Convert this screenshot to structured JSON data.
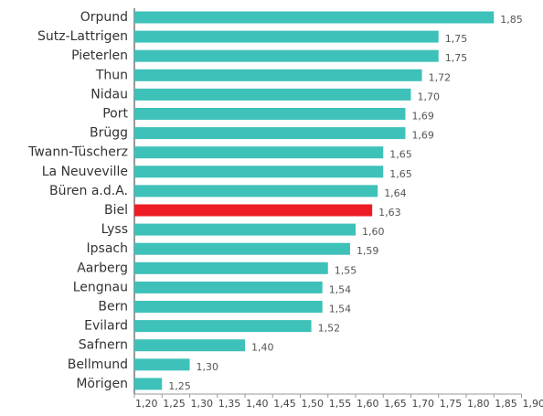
{
  "chart_data": {
    "type": "barh",
    "categories": [
      "Orpund",
      "Sutz-Lattrigen",
      "Pieterlen",
      "Thun",
      "Nidau",
      "Port",
      "Brügg",
      "Twann-Tüscherz",
      "La Neuveville",
      "Büren a.d.A.",
      "Biel",
      "Lyss",
      "Ipsach",
      "Aarberg",
      "Lengnau",
      "Bern",
      "Evilard",
      "Safnern",
      "Bellmund",
      "Mörigen"
    ],
    "values": [
      1.85,
      1.75,
      1.75,
      1.72,
      1.7,
      1.69,
      1.69,
      1.65,
      1.65,
      1.64,
      1.63,
      1.6,
      1.59,
      1.55,
      1.54,
      1.54,
      1.52,
      1.4,
      1.3,
      1.25
    ],
    "value_labels": [
      "1,85",
      "1,75",
      "1,75",
      "1,72",
      "1,70",
      "1,69",
      "1,69",
      "1,65",
      "1,65",
      "1,64",
      "1,63",
      "1,60",
      "1,59",
      "1,55",
      "1,54",
      "1,54",
      "1,52",
      "1,40",
      "1,30",
      "1,25"
    ],
    "colors": [
      "#3ec1b9",
      "#3ec1b9",
      "#3ec1b9",
      "#3ec1b9",
      "#3ec1b9",
      "#3ec1b9",
      "#3ec1b9",
      "#3ec1b9",
      "#3ec1b9",
      "#3ec1b9",
      "#ed1c24",
      "#3ec1b9",
      "#3ec1b9",
      "#3ec1b9",
      "#3ec1b9",
      "#3ec1b9",
      "#3ec1b9",
      "#3ec1b9",
      "#3ec1b9",
      "#3ec1b9"
    ],
    "xlim": [
      1.2,
      1.9
    ],
    "xticks": [
      {
        "value": 1.2,
        "label": "1,20"
      },
      {
        "value": 1.25,
        "label": "1,25"
      },
      {
        "value": 1.3,
        "label": "1,30"
      },
      {
        "value": 1.35,
        "label": "1,35"
      },
      {
        "value": 1.4,
        "label": "1,40"
      },
      {
        "value": 1.45,
        "label": "1,45"
      },
      {
        "value": 1.5,
        "label": "1,50"
      },
      {
        "value": 1.55,
        "label": "1,55"
      },
      {
        "value": 1.6,
        "label": "1,60"
      },
      {
        "value": 1.65,
        "label": "1,65"
      },
      {
        "value": 1.7,
        "label": "1,70"
      },
      {
        "value": 1.75,
        "label": "1,75"
      },
      {
        "value": 1.8,
        "label": "1,80"
      },
      {
        "value": 1.85,
        "label": "1,85"
      },
      {
        "value": 1.9,
        "label": "1,90"
      }
    ]
  }
}
